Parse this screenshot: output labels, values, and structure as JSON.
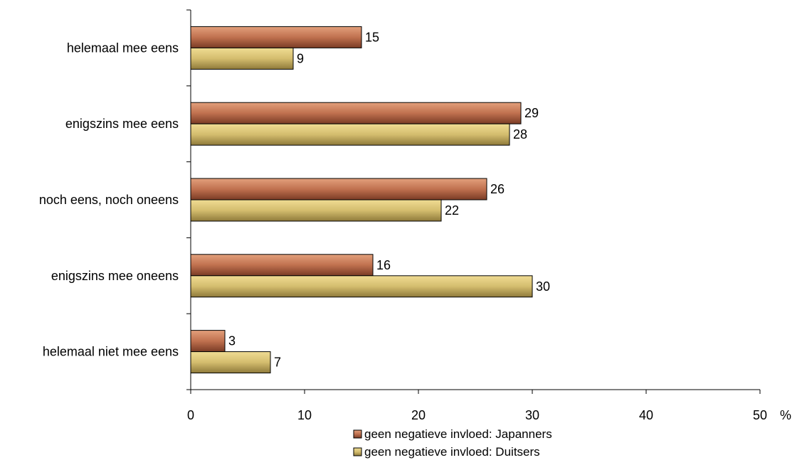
{
  "chart_data": {
    "type": "bar",
    "orientation": "horizontal",
    "categories": [
      "helemaal mee eens",
      "enigszins mee eens",
      "noch eens, noch oneens",
      "enigszins mee oneens",
      "helemaal niet mee eens"
    ],
    "series": [
      {
        "name": "geen negatieve invloed: Japanners",
        "values": [
          15,
          29,
          26,
          16,
          3
        ],
        "data_labels": [
          "15",
          "29",
          "26",
          "16",
          "3"
        ],
        "color": "#c0714f"
      },
      {
        "name": "geen negatieve invloed: Duitsers",
        "values": [
          9,
          28,
          22,
          30,
          7
        ],
        "data_labels": [
          "9",
          "28",
          "22",
          "30",
          "7"
        ],
        "color": "#d4bd6e"
      }
    ],
    "x_ticks": [
      "0",
      "10",
      "20",
      "30",
      "40",
      "50"
    ],
    "xlim": [
      0,
      50
    ],
    "x_unit": "%",
    "grid": false,
    "legend_position": "bottom"
  }
}
